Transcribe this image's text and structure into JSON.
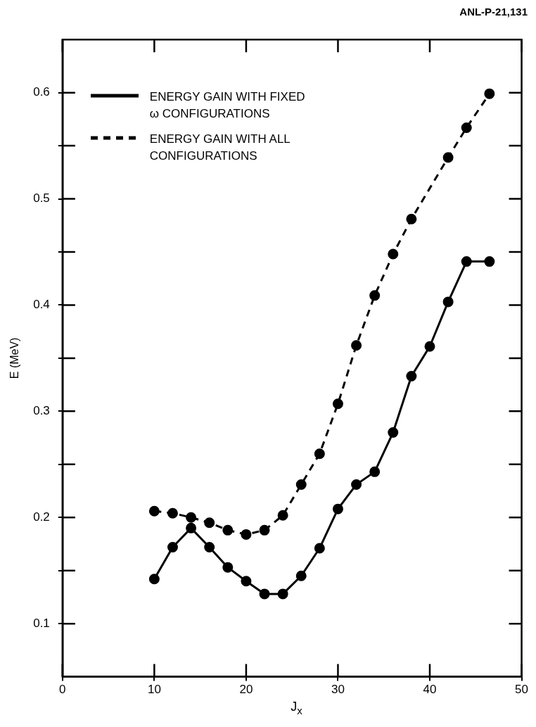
{
  "chart_data": {
    "type": "line",
    "xlabel": "J$_{x}$",
    "ylabel": "E (MeV)",
    "annotations": [
      "ANL-P-21,131"
    ],
    "xlim": [
      0,
      50
    ],
    "xticks": [
      0,
      10,
      20,
      30,
      40,
      50
    ],
    "ylim": [
      0.05,
      0.65
    ],
    "yticks": [
      {
        "value": 0.1,
        "label": "0.1"
      },
      {
        "value": 0.15,
        "label": null
      },
      {
        "value": 0.2,
        "label": "0.2"
      },
      {
        "value": 0.25,
        "label": null
      },
      {
        "value": 0.3,
        "label": "0.3"
      },
      {
        "value": 0.35,
        "label": null
      },
      {
        "value": 0.4,
        "label": "0.4"
      },
      {
        "value": 0.45,
        "label": null
      },
      {
        "value": 0.5,
        "label": "0.5"
      },
      {
        "value": 0.55,
        "label": null
      },
      {
        "value": 0.6,
        "label": "0.6"
      }
    ],
    "grid": false,
    "legend": "top left",
    "marker": "circle",
    "series": [
      {
        "name": "ENERGY GAIN WITH FIXED ω CONFIGURATIONS",
        "color": "#000000",
        "line_style": "solid",
        "x": [
          10,
          12,
          14,
          16,
          18,
          20,
          22,
          24,
          26,
          28,
          30,
          32,
          34,
          36,
          38,
          40,
          42,
          44,
          46.5
        ],
        "values": [
          0.142,
          0.172,
          0.19,
          0.172,
          0.153,
          0.14,
          0.128,
          0.128,
          0.145,
          0.171,
          0.208,
          0.231,
          0.243,
          0.28,
          0.333,
          0.361,
          0.403,
          0.441,
          0.441
        ]
      },
      {
        "name": "ENERGY GAIN WITH ALL CONFIGURATIONS",
        "color": "#000000",
        "line_style": "dashed",
        "x": [
          10,
          12,
          14,
          16,
          18,
          20,
          22,
          24,
          26,
          28,
          30,
          32,
          34,
          36,
          38,
          42,
          44,
          46.5
        ],
        "values": [
          0.206,
          0.204,
          0.2,
          0.195,
          0.188,
          0.184,
          0.188,
          0.202,
          0.231,
          0.26,
          0.307,
          0.362,
          0.409,
          0.448,
          0.481,
          0.539,
          0.567,
          0.599
        ]
      }
    ]
  }
}
